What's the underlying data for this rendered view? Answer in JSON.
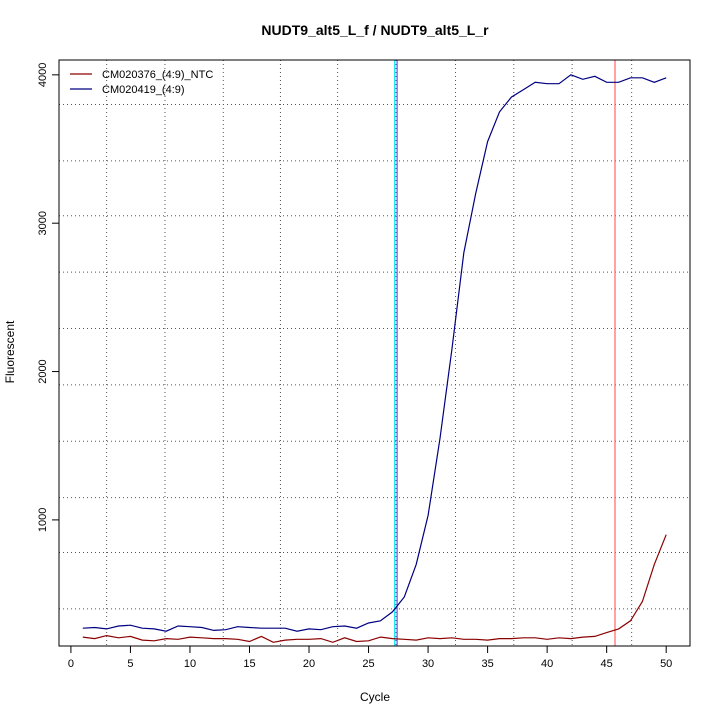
{
  "chart_data": {
    "type": "line",
    "title": "NUDT9_alt5_L_f / NUDT9_alt5_L_r",
    "xlabel": "Cycle",
    "ylabel": "Fluorescent",
    "xlim": [
      -1,
      52
    ],
    "ylim": [
      150,
      4100
    ],
    "xticks": [
      0,
      5,
      10,
      15,
      20,
      25,
      30,
      35,
      40,
      45,
      50
    ],
    "yticks": [
      1000,
      2000,
      3000,
      4000
    ],
    "grid_x": [
      3,
      7.9,
      12.8,
      17.6,
      22.4,
      27.3,
      32.3,
      37.2,
      42.1,
      47.1
    ],
    "grid_y": [
      400,
      780,
      1150,
      1530,
      1910,
      2290,
      2670,
      3050,
      3420,
      3800
    ],
    "legend_position": "top-left",
    "vlines": [
      {
        "x": 27.2,
        "color": "#00e5ee"
      },
      {
        "x": 27.4,
        "color": "#5a5aff"
      },
      {
        "x": 45.7,
        "color": "#ff6666"
      }
    ],
    "series": [
      {
        "name": "CM020376_(4:9)_NTC",
        "color": "#8b0000",
        "x": [
          1,
          2,
          3,
          4,
          5,
          6,
          7,
          8,
          9,
          10,
          11,
          12,
          13,
          14,
          15,
          16,
          17,
          18,
          19,
          20,
          21,
          22,
          23,
          24,
          25,
          26,
          27,
          28,
          29,
          30,
          31,
          32,
          33,
          34,
          35,
          36,
          37,
          38,
          39,
          40,
          41,
          42,
          43,
          44,
          45,
          46,
          47,
          48,
          49,
          50
        ],
        "values": [
          210,
          200,
          220,
          205,
          215,
          190,
          185,
          200,
          195,
          210,
          205,
          200,
          200,
          195,
          180,
          215,
          175,
          190,
          195,
          195,
          200,
          175,
          205,
          180,
          185,
          210,
          200,
          195,
          190,
          205,
          200,
          205,
          195,
          195,
          190,
          200,
          200,
          205,
          205,
          195,
          205,
          200,
          210,
          215,
          240,
          265,
          320,
          450,
          700,
          900
        ]
      },
      {
        "name": "CM020419_(4:9)",
        "color": "#000080",
        "x": [
          1,
          2,
          3,
          4,
          5,
          6,
          7,
          8,
          9,
          10,
          11,
          12,
          13,
          14,
          15,
          16,
          17,
          18,
          19,
          20,
          21,
          22,
          23,
          24,
          25,
          26,
          27,
          28,
          29,
          30,
          31,
          32,
          33,
          34,
          35,
          36,
          37,
          38,
          39,
          40,
          41,
          42,
          43,
          44,
          45,
          46,
          47,
          48,
          49,
          50
        ],
        "values": [
          270,
          275,
          265,
          285,
          290,
          270,
          265,
          250,
          285,
          280,
          275,
          255,
          260,
          280,
          275,
          270,
          270,
          270,
          250,
          265,
          260,
          280,
          285,
          270,
          305,
          320,
          380,
          480,
          700,
          1030,
          1550,
          2150,
          2800,
          3200,
          3550,
          3750,
          3850,
          3900,
          3950,
          3940,
          3940,
          4000,
          3970,
          3990,
          3950,
          3950,
          3980,
          3980,
          3950,
          3980
        ]
      }
    ]
  }
}
